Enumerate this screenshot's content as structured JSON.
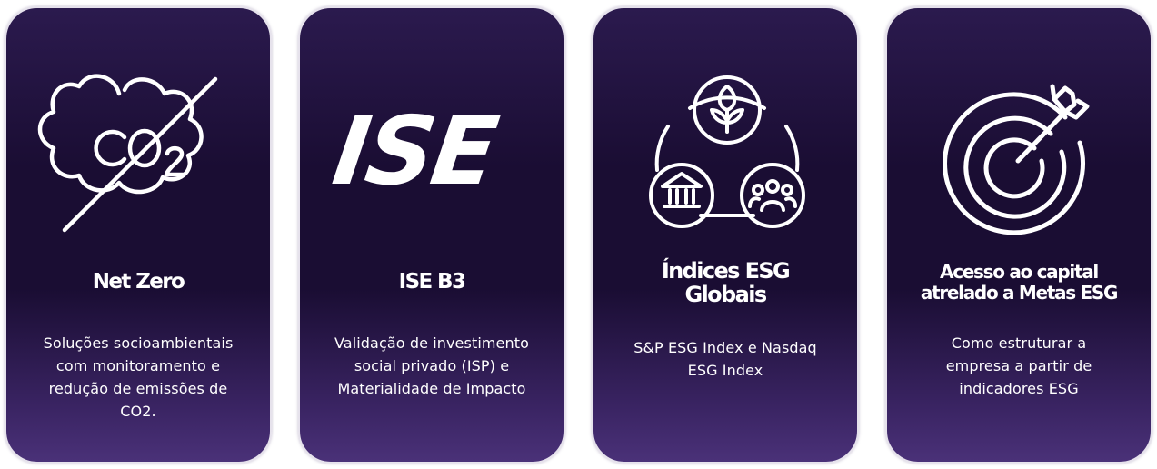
{
  "cards": [
    {
      "icon": "co2-crossed-cloud-icon",
      "title": "Net Zero",
      "description": [
        "Soluções socioambientais",
        "com monitoramento e",
        "redução de emissões de",
        "CO2."
      ]
    },
    {
      "icon": "ise-logo",
      "logo_text": "ISE",
      "title": "ISE B3",
      "description": [
        "Validação de investimento",
        "social privado (ISP) e",
        "Materialidade de Impacto"
      ]
    },
    {
      "icon": "global-esg-cycle-icon",
      "title": "Índices ESG Globais",
      "title_lines": [
        "Índices ESG",
        "Globais"
      ],
      "description": [
        "S&P ESG Index e Nasdaq",
        "ESG Index"
      ]
    },
    {
      "icon": "target-arrow-icon",
      "title": "Acesso ao capital atrelado a Metas ESG",
      "title_lines": [
        "Acesso ao capital",
        "atrelado a Metas ESG"
      ],
      "description": [
        "Como estruturar a",
        "empresa a partir de",
        "indicadores ESG"
      ]
    }
  ],
  "colors": {
    "card_background": "#1a0d33",
    "card_gradient_bottom": "#4a3178",
    "card_border": "#e6e2ec",
    "text": "#ffffff"
  }
}
